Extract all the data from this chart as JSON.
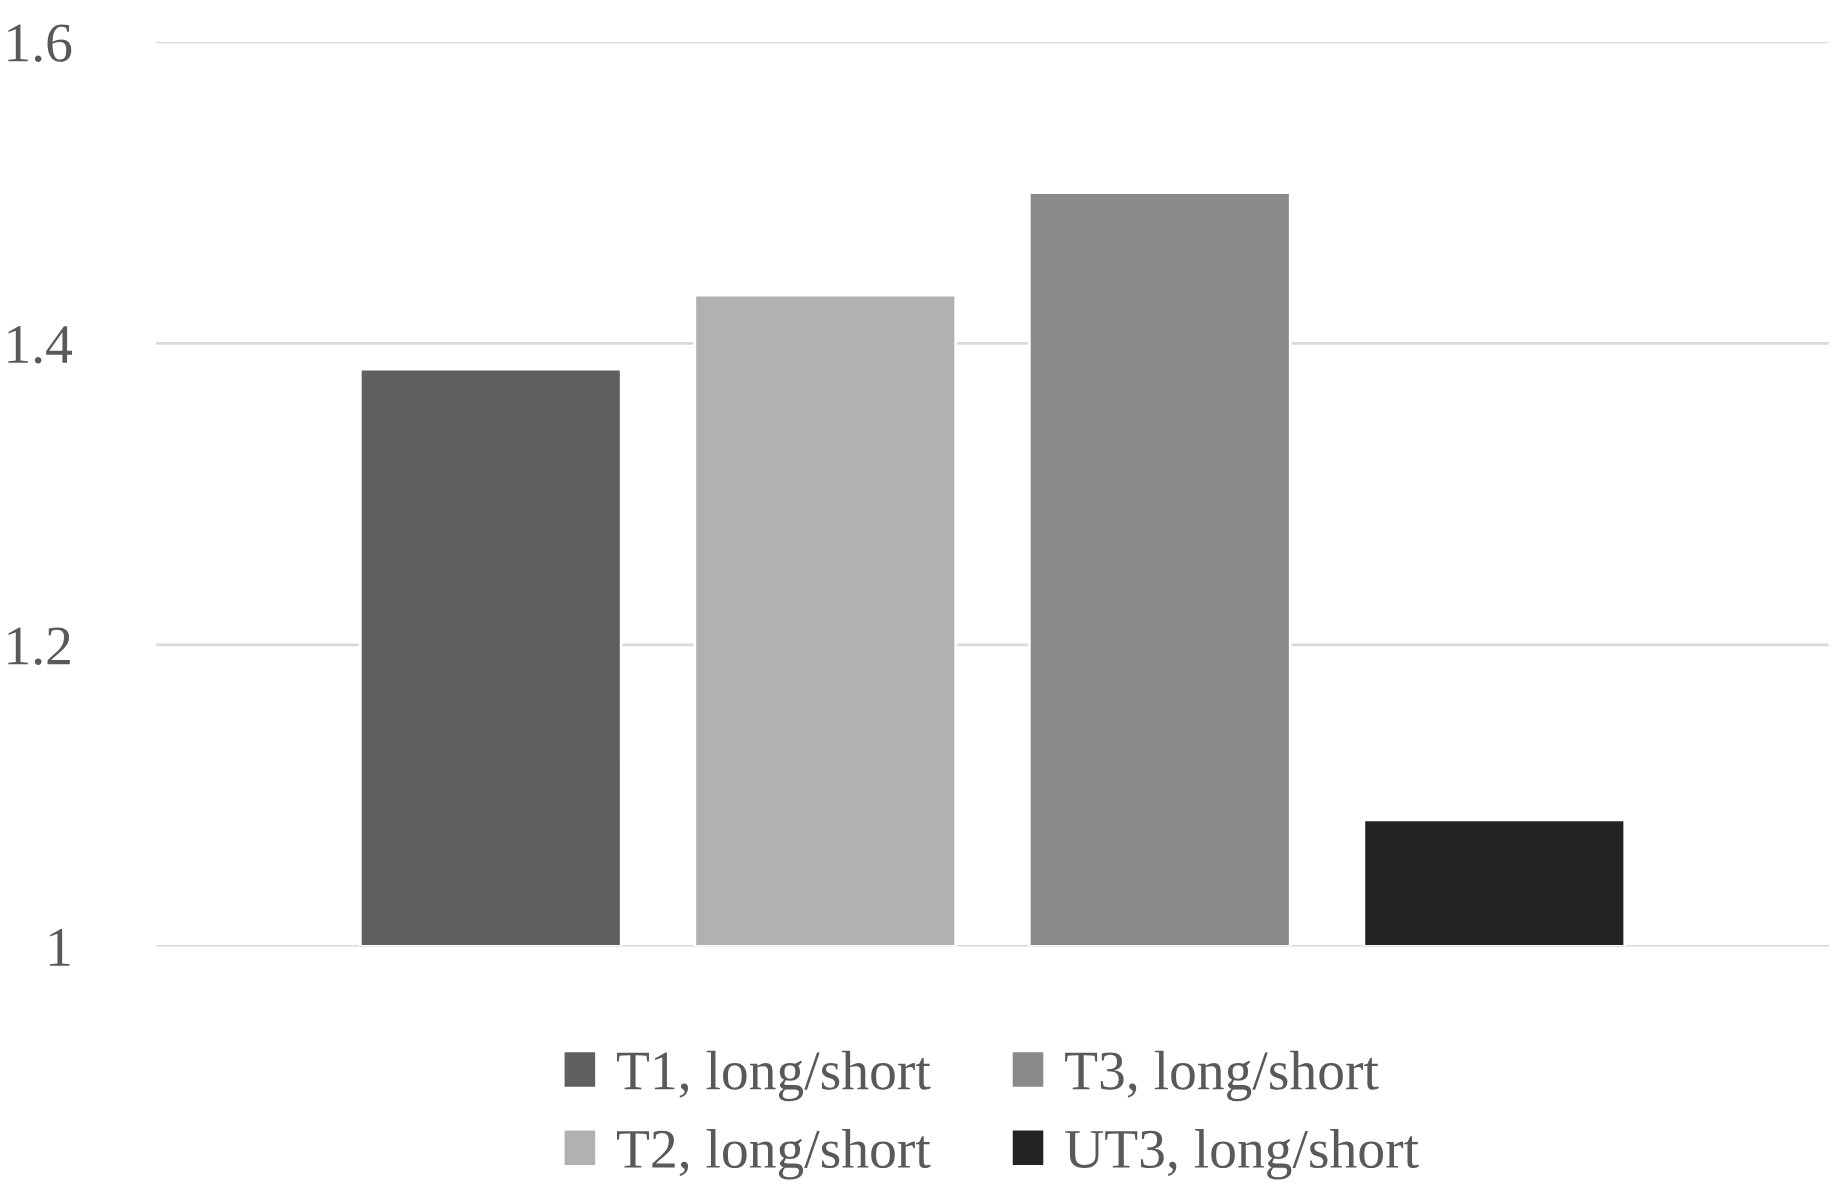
{
  "chart_data": {
    "type": "bar",
    "categories": [
      null
    ],
    "series": [
      {
        "name": "T1, long/short",
        "color": "#5f5f5f",
        "values": [
          1.383
        ]
      },
      {
        "name": "T2, long/short",
        "color": "#b1b1b1",
        "values": [
          1.432
        ]
      },
      {
        "name": "T3, long/short",
        "color": "#8a8a8a",
        "values": [
          1.5
        ]
      },
      {
        "name": "UT3, long/short",
        "color": "#232323",
        "values": [
          1.084
        ]
      }
    ],
    "ylim": [
      1,
      1.6
    ],
    "yticks": [
      {
        "value": 1,
        "label": "1"
      },
      1.2,
      1.4,
      1.6
    ],
    "grid": "y",
    "legend": "bottom"
  }
}
